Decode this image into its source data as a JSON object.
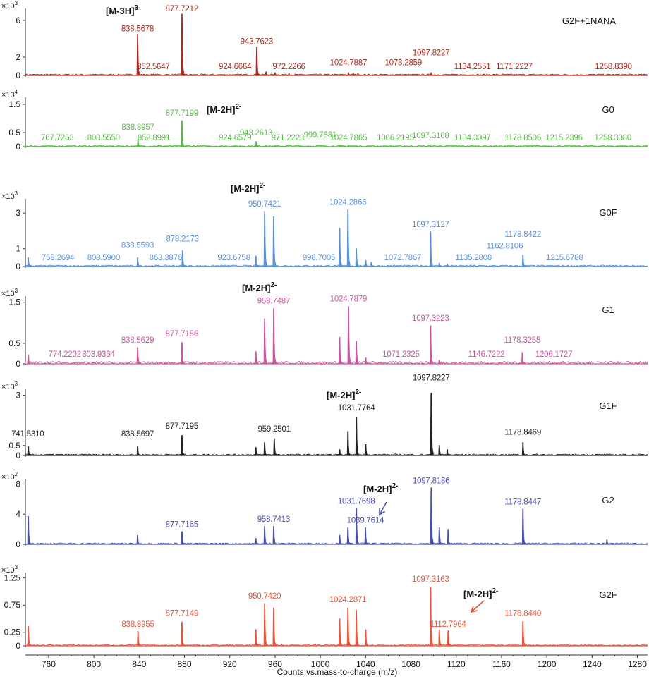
{
  "chart_data": {
    "type": "line",
    "xlabel": "Counts vs.mass-to-charge (m/z)",
    "xlim": [
      739.5,
      1289
    ],
    "xticks": [
      760,
      800,
      840,
      880,
      920,
      960,
      1000,
      1040,
      1080,
      1120,
      1160,
      1200,
      1240,
      1280
    ],
    "panels": [
      {
        "name": "G2F+1NANA",
        "color": "#a82a20",
        "exponent": "3",
        "ion": {
          "base": "[M-3H]",
          "sup": "3-"
        },
        "ylim": [
          0,
          7.3
        ],
        "yticks": [
          0,
          2,
          6
        ],
        "peaks": [
          [
            838.57,
            4.5
          ],
          [
            852.56,
            0.15
          ],
          [
            877.72,
            6.7
          ],
          [
            924.67,
            0.1
          ],
          [
            943.76,
            3.1
          ],
          [
            952,
            0.4
          ],
          [
            960,
            0.3
          ],
          [
            972.23,
            0.2
          ],
          [
            1024.79,
            0.3
          ],
          [
            1029,
            0.25
          ],
          [
            1033,
            0.2
          ],
          [
            1097.82,
            0.3
          ]
        ],
        "labels": [
          [
            838.5678,
            "838.5678",
            4.5
          ],
          [
            852.5647,
            "852.5647",
            0.15
          ],
          [
            877.7212,
            "877.7212",
            6.7
          ],
          [
            924.6664,
            "924.6664",
            0.1
          ],
          [
            943.7623,
            "943.7623",
            3.1
          ],
          [
            972.2266,
            "972.2266",
            0.2
          ],
          [
            1024.7887,
            "1024.7887",
            0.8
          ],
          [
            1073.2859,
            "1073.2859",
            0.8
          ],
          [
            1097.8227,
            "1097.8227",
            1.9
          ],
          [
            1134.2551,
            "1134.2551",
            0.2
          ],
          [
            1171.2227,
            "1171.2227",
            0.2
          ],
          [
            1258.839,
            "1258.8390",
            0.2
          ]
        ]
      },
      {
        "name": "G0",
        "color": "#5cb84a",
        "exponent": "4",
        "ion": {
          "base": "[M-2H]",
          "sup": "2-"
        },
        "ylim": [
          0,
          1.75
        ],
        "yticks": [
          0,
          0.5,
          1.5
        ],
        "peaks": [
          [
            838.9,
            0.27
          ],
          [
            852.9,
            0.02
          ],
          [
            877.72,
            0.92
          ],
          [
            924.66,
            0.02
          ],
          [
            943.26,
            0.18
          ],
          [
            952,
            0.05
          ],
          [
            960,
            0.03
          ],
          [
            1017,
            0.04
          ],
          [
            1024.79,
            0.05
          ],
          [
            1031,
            0.03
          ],
          [
            1097.32,
            0.03
          ]
        ],
        "labels": [
          [
            767.7263,
            "767.7263",
            0.02
          ],
          [
            808.555,
            "808.5550",
            0.02
          ],
          [
            838.8957,
            "838.8957",
            0.5
          ],
          [
            852.8991,
            "852.8991",
            0.05
          ],
          [
            877.7199,
            "877.7199",
            1.0
          ],
          [
            924.6579,
            "924.6579",
            0.05
          ],
          [
            943.2613,
            "943.2613",
            0.3
          ],
          [
            971.2223,
            "971.2223",
            0.02
          ],
          [
            999.7881,
            "999.7881",
            0.22
          ],
          [
            1024.7865,
            "1024.7865",
            0.08
          ],
          [
            1066.2195,
            "1066.2195",
            0.02
          ],
          [
            1097.3168,
            "1097.3168",
            0.2
          ],
          [
            1134.3397,
            "1134.3397",
            0.02
          ],
          [
            1178.8506,
            "1178.8506",
            0.02
          ],
          [
            1215.2396,
            "1215.2396",
            0.02
          ],
          [
            1258.338,
            "1258.3380",
            0.02
          ]
        ]
      },
      {
        "name": "G0F",
        "color": "#5b8fd6",
        "exponent": "3",
        "ion": {
          "base": "[M-2H]",
          "sup": "2-"
        },
        "ylim": [
          0,
          3.8
        ],
        "yticks": [
          0,
          1,
          3
        ],
        "peaks": [
          [
            742,
            0.5
          ],
          [
            838.56,
            0.5
          ],
          [
            878.22,
            0.9
          ],
          [
            943,
            0.6
          ],
          [
            950.74,
            3.1
          ],
          [
            958.7,
            2.8
          ],
          [
            1017,
            2.15
          ],
          [
            1024.29,
            3.2
          ],
          [
            1031.7,
            1.0
          ],
          [
            1040,
            0.35
          ],
          [
            1045,
            0.25
          ],
          [
            1097.31,
            1.95
          ],
          [
            1105,
            0.2
          ],
          [
            1112,
            0.15
          ],
          [
            1178.84,
            0.65
          ]
        ],
        "labels": [
          [
            768.2694,
            "768.2694",
            0.1
          ],
          [
            808.59,
            "808.5900",
            0.1
          ],
          [
            838.5593,
            "838.5593",
            0.9
          ],
          [
            863.3876,
            "863.3876",
            0.1
          ],
          [
            878.2173,
            "878.2173",
            1.25
          ],
          [
            923.6758,
            "923.6758",
            0.1
          ],
          [
            950.7421,
            "950.7421",
            3.2
          ],
          [
            998.7005,
            "998.7005",
            0.1
          ],
          [
            1024.2866,
            "1024.2866",
            3.3
          ],
          [
            1072.7867,
            "1072.7867",
            0.1
          ],
          [
            1097.3127,
            "1097.3127",
            2.05
          ],
          [
            1135.2808,
            "1135.2808",
            0.1
          ],
          [
            1162.8106,
            "1162.8106",
            0.85
          ],
          [
            1178.8422,
            "1178.8422",
            1.5
          ],
          [
            1215.6788,
            "1215.6788",
            0.1
          ]
        ]
      },
      {
        "name": "G1",
        "color": "#c9569e",
        "exponent": "3",
        "ion": {
          "base": "[M-2H]",
          "sup": "2-"
        },
        "ylim": [
          0,
          1.65
        ],
        "yticks": [
          0,
          0.5,
          1.5
        ],
        "peaks": [
          [
            742,
            0.22
          ],
          [
            838.56,
            0.4
          ],
          [
            877.72,
            0.52
          ],
          [
            943,
            0.3
          ],
          [
            950.7,
            1.1
          ],
          [
            958.75,
            1.35
          ],
          [
            1017,
            0.65
          ],
          [
            1024.79,
            1.4
          ],
          [
            1031.7,
            0.55
          ],
          [
            1040,
            0.15
          ],
          [
            1097.32,
            0.93
          ],
          [
            1105,
            0.1
          ],
          [
            1178.33,
            0.28
          ]
        ],
        "labels": [
          [
            774.2202,
            "774.2202",
            0.1
          ],
          [
            803.9364,
            "803.9364",
            0.1
          ],
          [
            838.5629,
            "838.5629",
            0.45
          ],
          [
            877.7156,
            "877.7156",
            0.6
          ],
          [
            958.7487,
            "958.7487",
            1.4
          ],
          [
            1024.7879,
            "1024.7879",
            1.45
          ],
          [
            1071.2325,
            "1071.2325",
            0.1
          ],
          [
            1097.3223,
            "1097.3223",
            0.98
          ],
          [
            1146.7222,
            "1146.7222",
            0.1
          ],
          [
            1178.3255,
            "1178.3255",
            0.45
          ],
          [
            1206.1727,
            "1206.1727",
            0.1
          ]
        ]
      },
      {
        "name": "G1F",
        "color": "#222222",
        "exponent": "3",
        "ion": {
          "base": "[M-2H]",
          "sup": "2-"
        },
        "ylim": [
          0,
          3.3
        ],
        "yticks": [
          0,
          0.5,
          3
        ],
        "peaks": [
          [
            742,
            0.45
          ],
          [
            838.57,
            0.45
          ],
          [
            877.72,
            1.0
          ],
          [
            943,
            0.4
          ],
          [
            950.7,
            0.65
          ],
          [
            959.25,
            0.85
          ],
          [
            1017,
            0.3
          ],
          [
            1024.3,
            1.2
          ],
          [
            1031.78,
            1.9
          ],
          [
            1040,
            0.55
          ],
          [
            1097.82,
            3.1
          ],
          [
            1105,
            0.5
          ],
          [
            1112,
            0.3
          ],
          [
            1178.85,
            0.65
          ]
        ],
        "labels": [
          [
            741.531,
            "741.5310",
            0.8
          ],
          [
            838.5697,
            "838.5697",
            0.8
          ],
          [
            877.7195,
            "877.7195",
            1.2
          ],
          [
            959.2501,
            "959.2501",
            1.05
          ],
          [
            1031.7764,
            "1031.7764",
            2.1
          ],
          [
            1097.8227,
            "1097.8227",
            3.6
          ],
          [
            1178.8469,
            "1178.8469",
            0.9
          ]
        ]
      },
      {
        "name": "G2",
        "color": "#4a50a8",
        "exponent": "2",
        "ion": {
          "base": "[M-2H]",
          "sup": "2-"
        },
        "ylim": [
          0,
          8.6
        ],
        "yticks": [
          0,
          4,
          8
        ],
        "peaks": [
          [
            742,
            3.7
          ],
          [
            838.5,
            1.2
          ],
          [
            877.72,
            1.7
          ],
          [
            943,
            0.8
          ],
          [
            950.7,
            2.4
          ],
          [
            958.74,
            2.4
          ],
          [
            1017,
            1.2
          ],
          [
            1024.3,
            2.2
          ],
          [
            1031.77,
            4.8
          ],
          [
            1039.76,
            2.2
          ],
          [
            1097.82,
            7.5
          ],
          [
            1105,
            2.2
          ],
          [
            1112.8,
            2.0
          ],
          [
            1178.84,
            4.7
          ],
          [
            1253,
            0.6
          ]
        ],
        "labels": [
          [
            877.7165,
            "877.7165",
            1.9
          ],
          [
            958.7413,
            "958.7413",
            2.6
          ],
          [
            1031.7698,
            "1031.7698",
            5.0
          ],
          [
            1039.7614,
            "1039.7614",
            2.5
          ],
          [
            1097.8186,
            "1097.8186",
            7.7
          ],
          [
            1178.8447,
            "1178.8447",
            4.9
          ]
        ]
      },
      {
        "name": "G2F",
        "color": "#e8553a",
        "exponent": "3",
        "ion": {
          "base": "[M-2H]",
          "sup": "2-"
        },
        "ylim": [
          0,
          1.35
        ],
        "yticks": [
          0,
          0.25,
          0.75,
          1.25
        ],
        "peaks": [
          [
            742,
            0.36
          ],
          [
            838.9,
            0.27
          ],
          [
            877.71,
            0.44
          ],
          [
            943,
            0.3
          ],
          [
            950.74,
            0.78
          ],
          [
            958.7,
            0.7
          ],
          [
            1017,
            0.5
          ],
          [
            1024.29,
            0.7
          ],
          [
            1031.7,
            0.65
          ],
          [
            1040,
            0.3
          ],
          [
            1097.32,
            1.08
          ],
          [
            1105,
            0.3
          ],
          [
            1112.8,
            0.28
          ],
          [
            1178.84,
            0.45
          ]
        ],
        "labels": [
          [
            838.8955,
            "838.8955",
            0.3
          ],
          [
            877.7149,
            "877.7149",
            0.5
          ],
          [
            950.742,
            "950.7420",
            0.82
          ],
          [
            1024.2871,
            "1024.2871",
            0.75
          ],
          [
            1097.3163,
            "1097.3163",
            1.13
          ],
          [
            1112.7964,
            "1112.7964",
            0.3
          ],
          [
            1178.844,
            "1178.8440",
            0.5
          ]
        ]
      }
    ]
  }
}
